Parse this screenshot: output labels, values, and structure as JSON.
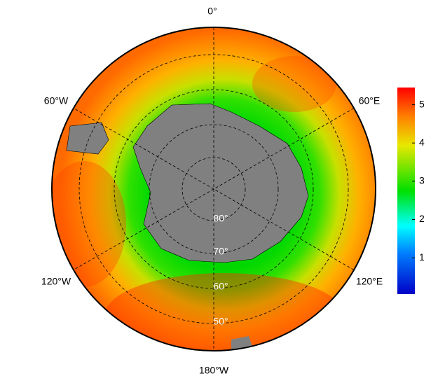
{
  "map": {
    "longitude_labels": [
      "0°",
      "60°E",
      "120°E",
      "180°W",
      "120°W",
      "60°W"
    ],
    "latitude_labels": [
      "50°",
      "60°",
      "70°",
      "80°"
    ],
    "colorbar": {
      "lim": [
        0.05,
        5.45
      ],
      "ticks": [
        1,
        2,
        3,
        4,
        5
      ]
    }
  }
}
